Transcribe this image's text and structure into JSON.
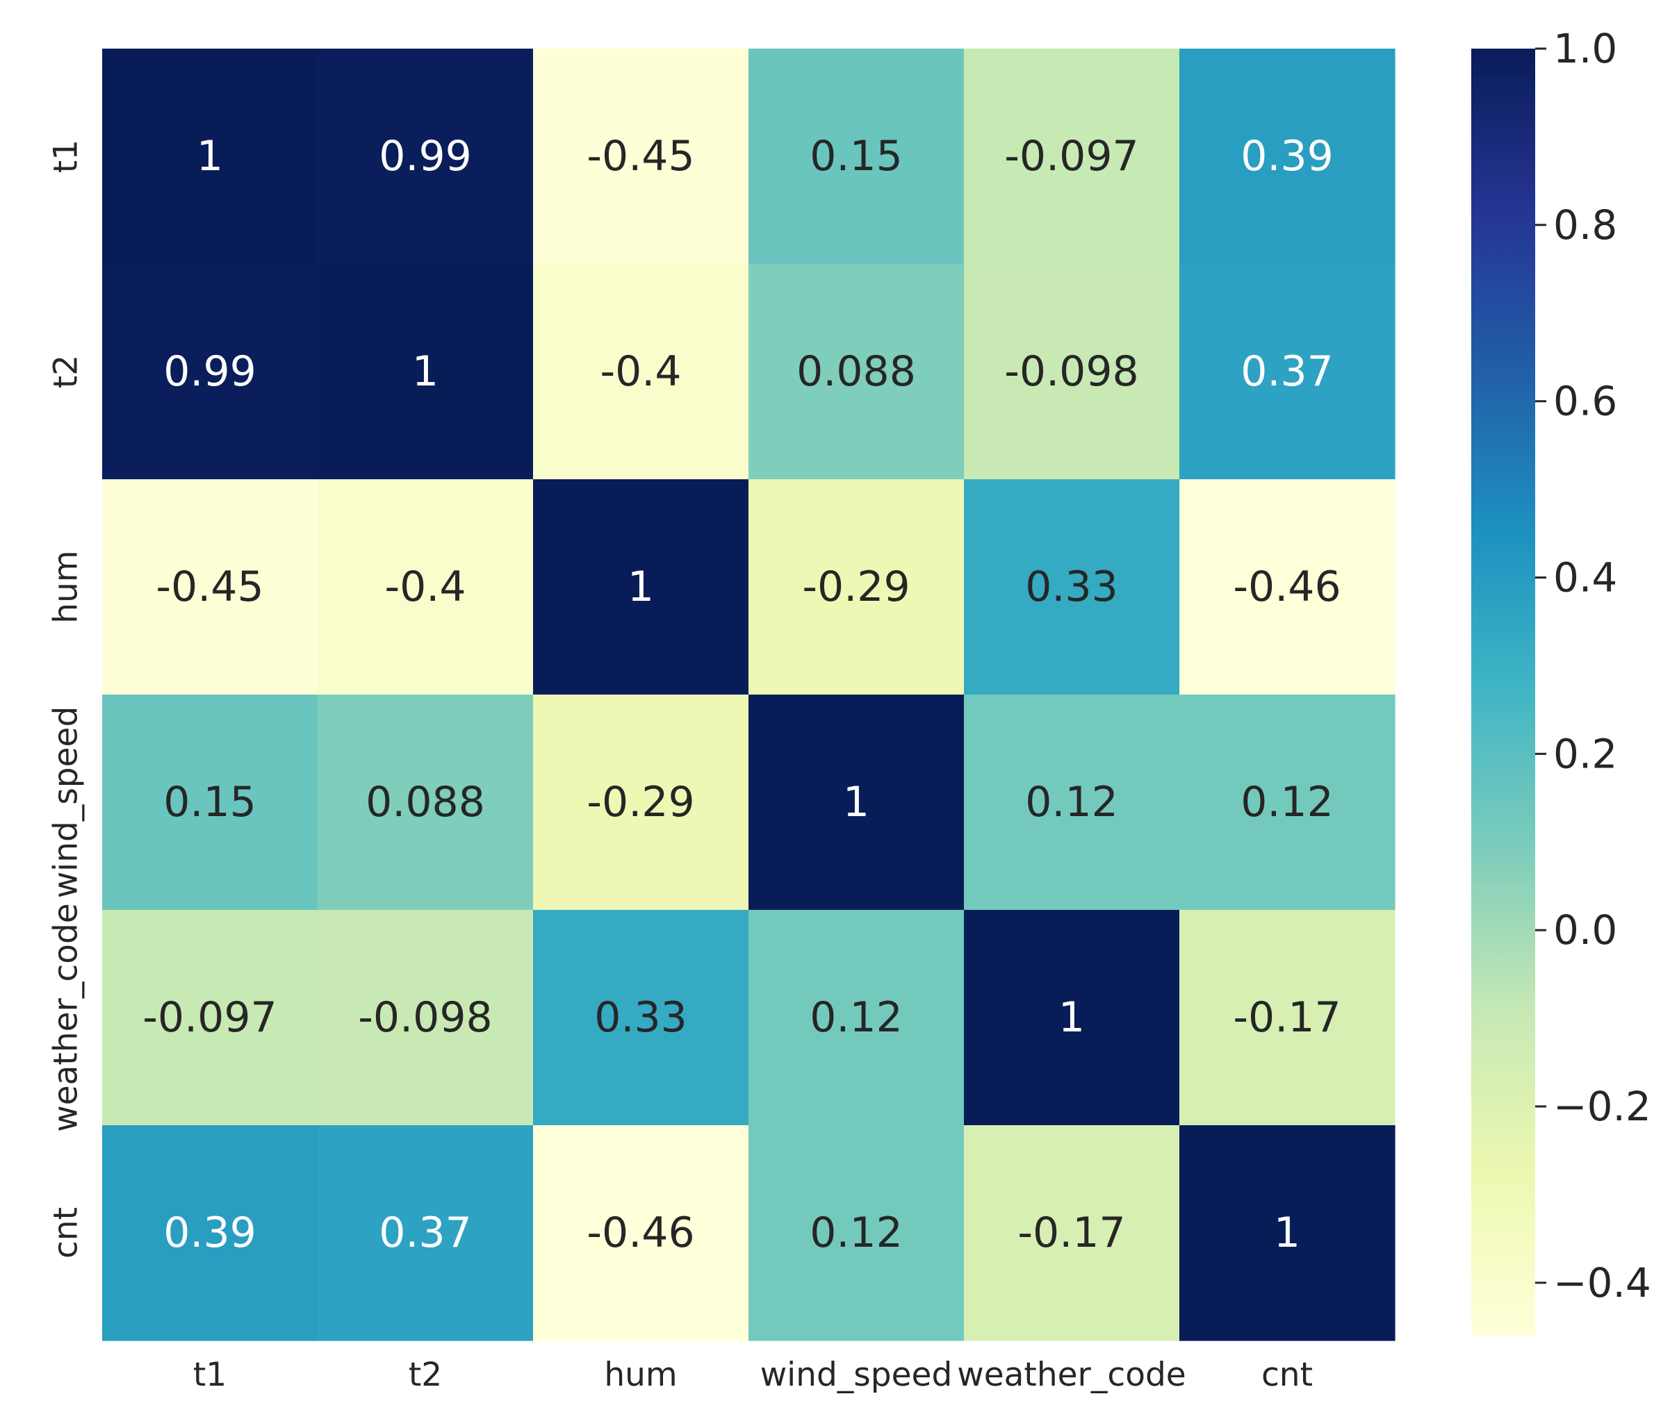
{
  "chart_data": {
    "type": "heatmap",
    "title": "",
    "xlabel": "",
    "ylabel": "",
    "colormap": "YlGnBu",
    "x_labels": [
      "t1",
      "t2",
      "hum",
      "wind_speed",
      "weather_code",
      "cnt"
    ],
    "y_labels": [
      "t1",
      "t2",
      "hum",
      "wind_speed",
      "weather_code",
      "cnt"
    ],
    "values": [
      [
        1,
        0.99,
        -0.45,
        0.15,
        -0.097,
        0.39
      ],
      [
        0.99,
        1,
        -0.4,
        0.088,
        -0.098,
        0.37
      ],
      [
        -0.45,
        -0.4,
        1,
        -0.29,
        0.33,
        -0.46
      ],
      [
        0.15,
        0.088,
        -0.29,
        1,
        0.12,
        0.12
      ],
      [
        -0.097,
        -0.098,
        0.33,
        0.12,
        1,
        -0.17
      ],
      [
        0.39,
        0.37,
        -0.46,
        0.12,
        -0.17,
        1
      ]
    ],
    "annotations": [
      [
        "1",
        "0.99",
        "-0.45",
        "0.15",
        "-0.097",
        "0.39"
      ],
      [
        "0.99",
        "1",
        "-0.4",
        "0.088",
        "-0.098",
        "0.37"
      ],
      [
        "-0.45",
        "-0.4",
        "1",
        "-0.29",
        "0.33",
        "-0.46"
      ],
      [
        "0.15",
        "0.088",
        "-0.29",
        "1",
        "0.12",
        "0.12"
      ],
      [
        "-0.097",
        "-0.098",
        "0.33",
        "0.12",
        "1",
        "-0.17"
      ],
      [
        "0.39",
        "0.37",
        "-0.46",
        "0.12",
        "-0.17",
        "1"
      ]
    ],
    "colorbar": {
      "vmin": -0.46,
      "vmax": 1.0,
      "ticks": [
        1.0,
        0.8,
        0.6,
        0.4,
        0.2,
        0.0,
        -0.2,
        -0.4
      ],
      "tick_labels": [
        "1.0",
        "0.8",
        "0.6",
        "0.4",
        "0.2",
        "0.0",
        "−0.2",
        "−0.4"
      ]
    }
  }
}
